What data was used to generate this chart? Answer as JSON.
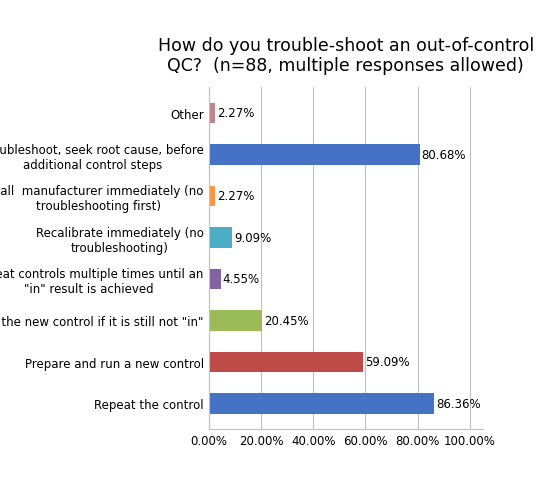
{
  "title": "How do you trouble-shoot an out-of-control\nQC?  (n=88, multiple responses allowed)",
  "categories": [
    "Repeat the control",
    "Prepare and run a new control",
    "Repeat the new control if it is still not \"in\"",
    "Repeat controls multiple times until an\n\"in\" result is achieved",
    "Recalibrate immediately (no\ntroubleshooting)",
    "Call  manufacturer immediately (no\ntroubleshooting first)",
    "Troubleshoot, seek root cause, before\nadditional control steps",
    "Other"
  ],
  "values": [
    86.36,
    59.09,
    20.45,
    4.55,
    9.09,
    2.27,
    80.68,
    2.27
  ],
  "colors": [
    "#4472C4",
    "#BE4B48",
    "#9BBB59",
    "#8064A2",
    "#4BACC6",
    "#F79646",
    "#4472C4",
    "#C0858A"
  ],
  "bar_label_format": [
    "86.36%",
    "59.09%",
    "20.45%",
    "4.55%",
    "9.09%",
    "2.27%",
    "80.68%",
    "2.27%"
  ],
  "xlim_max": 105,
  "xtick_values": [
    0,
    20,
    40,
    60,
    80,
    100
  ],
  "xtick_labels": [
    "0.00%",
    "20.00%",
    "40.00%",
    "60.00%",
    "80.00%",
    "100.00%"
  ],
  "background_color": "#FFFFFF",
  "title_fontsize": 12.5,
  "tick_fontsize": 8.5,
  "label_fontsize": 8.5,
  "bar_height": 0.5,
  "figsize": [
    5.49,
    4.89
  ],
  "dpi": 100
}
